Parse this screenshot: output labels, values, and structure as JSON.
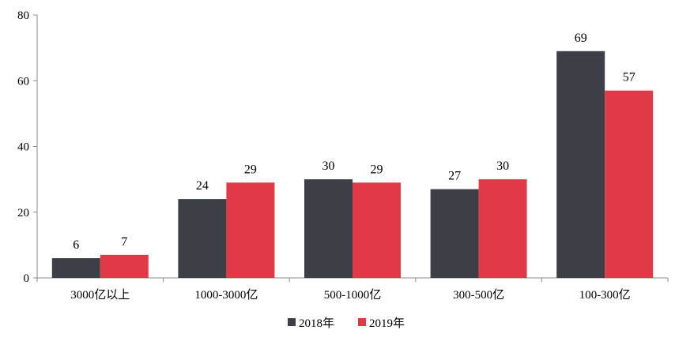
{
  "chart_data": {
    "type": "bar",
    "categories": [
      "3000亿以上",
      "1000-3000亿",
      "500-1000亿",
      "300-500亿",
      "100-300亿"
    ],
    "series": [
      {
        "name": "2018年",
        "values": [
          6,
          24,
          30,
          27,
          69
        ],
        "color": "#3d3f47"
      },
      {
        "name": "2019年",
        "values": [
          7,
          29,
          29,
          30,
          57
        ],
        "color": "#e03a48"
      }
    ],
    "ylim": [
      0,
      80
    ],
    "yticks": [
      0,
      20,
      40,
      60,
      80
    ],
    "grid": false,
    "legend_position": "bottom",
    "data_labels": true
  }
}
